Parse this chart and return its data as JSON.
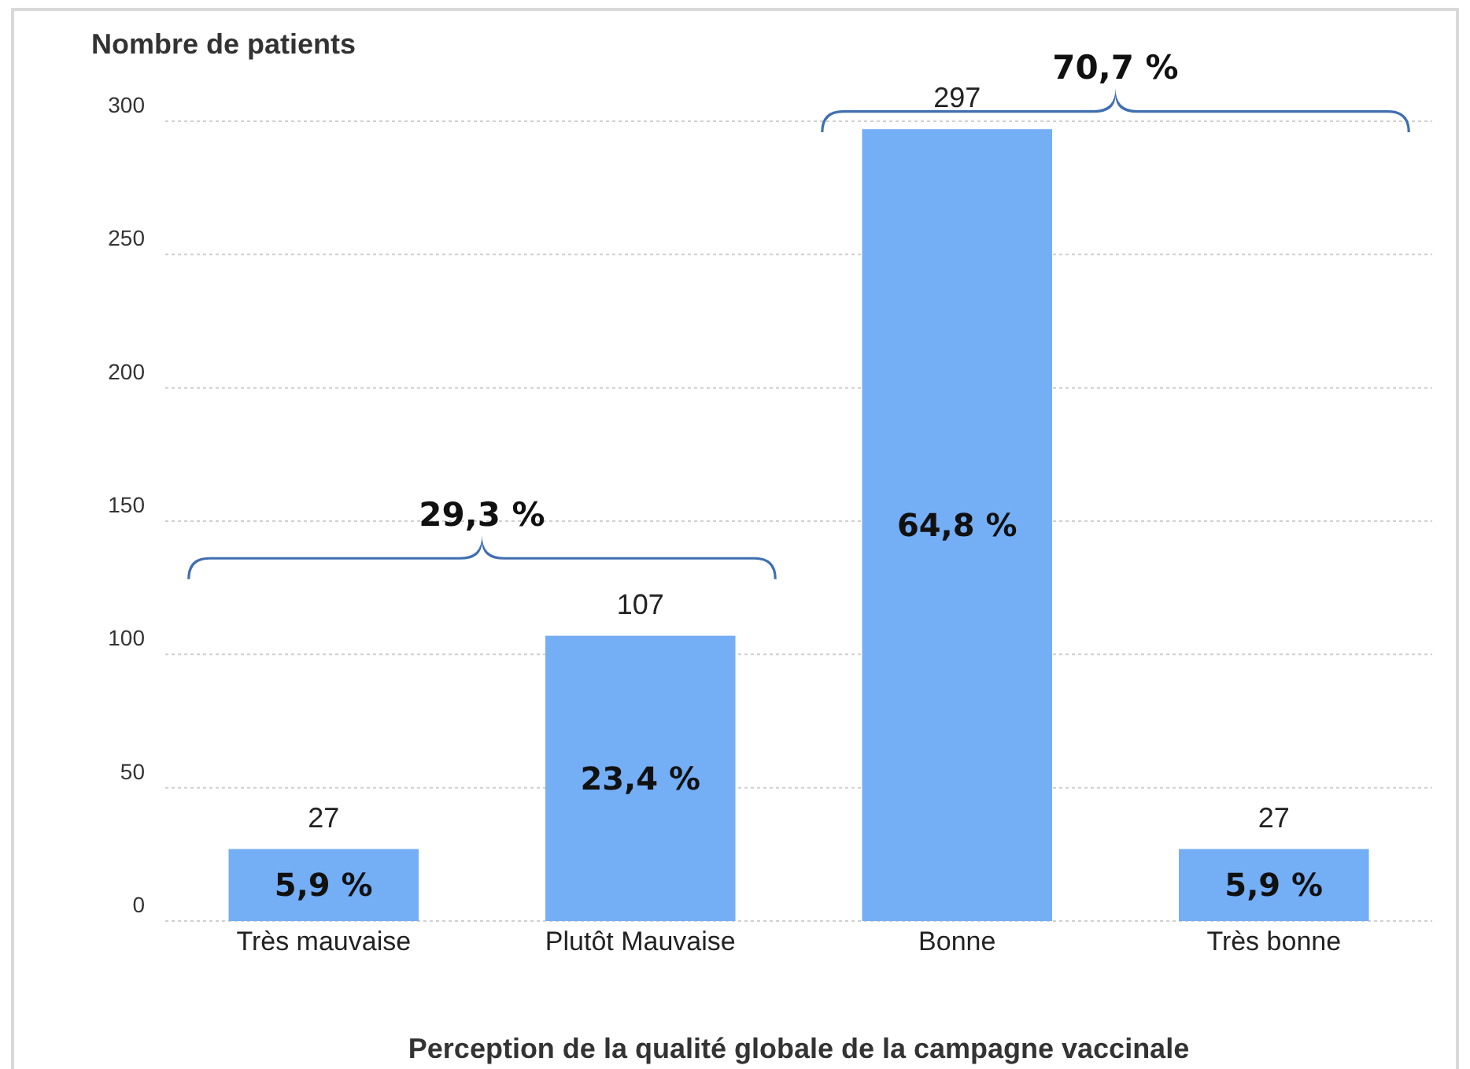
{
  "chart_data": {
    "type": "bar",
    "xlabel": "Perception de la qualité globale de la campagne vaccinale",
    "ylabel": "Nombre de patients",
    "categories": [
      "Très mauvaise",
      "Plutôt Mauvaise",
      "Bonne",
      "Très bonne"
    ],
    "values": [
      27,
      107,
      297,
      27
    ],
    "color": "#74aef5",
    "data_labels": true,
    "ylim": [
      0,
      300
    ],
    "yticks": [
      0,
      50,
      100,
      150,
      200,
      250,
      300
    ],
    "grid": "y",
    "annotations": [
      "5,9 %",
      "23,4 %",
      "64,8 %",
      "5,9 %",
      "29,3 %",
      "70,7 %"
    ]
  }
}
